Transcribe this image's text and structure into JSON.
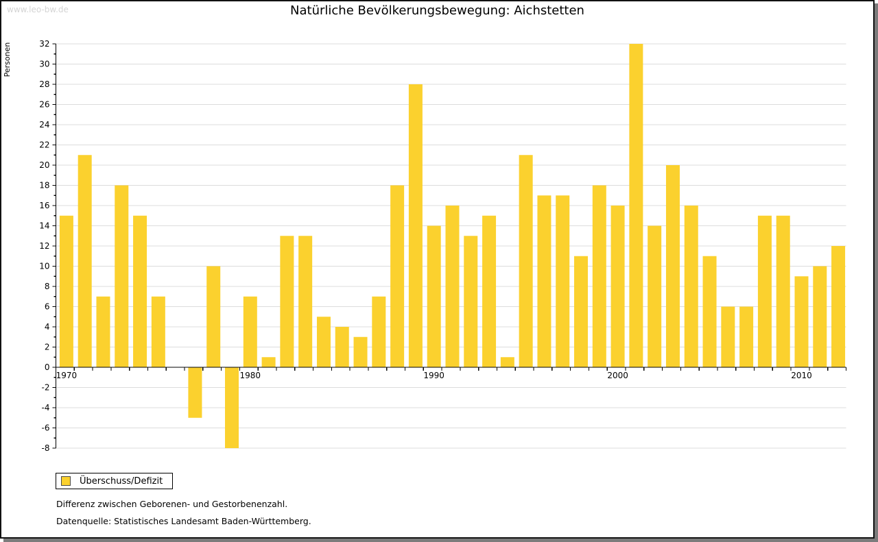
{
  "watermark": {
    "text": "www.leo-bw.de",
    "color": "#d4d4d4"
  },
  "chart_data": {
    "type": "bar",
    "title": "Natürliche Bevölkerungsbewegung: Aichstetten",
    "ylabel": "Personen",
    "xlabel": "",
    "categories": [
      1970,
      1971,
      1972,
      1973,
      1974,
      1975,
      1976,
      1977,
      1978,
      1979,
      1980,
      1981,
      1982,
      1983,
      1984,
      1985,
      1986,
      1987,
      1988,
      1989,
      1990,
      1991,
      1992,
      1993,
      1994,
      1995,
      1996,
      1997,
      1998,
      1999,
      2000,
      2001,
      2002,
      2003,
      2004,
      2005,
      2006,
      2007,
      2008,
      2009,
      2010,
      2011,
      2012
    ],
    "values": [
      15,
      21,
      7,
      18,
      15,
      7,
      0,
      -5,
      10,
      -8,
      7,
      1,
      13,
      13,
      5,
      4,
      3,
      7,
      18,
      28,
      14,
      16,
      13,
      15,
      1,
      21,
      17,
      17,
      11,
      18,
      16,
      32,
      14,
      20,
      16,
      11,
      6,
      6,
      15,
      15,
      9,
      10,
      12
    ],
    "series_name": "Überschuss/Defizit",
    "ylim": [
      -8,
      32
    ],
    "y_tick_step": 2,
    "y_minor_step": 1,
    "x_tick_labels": [
      "1970",
      "1980",
      "1990",
      "2000",
      "2010"
    ],
    "x_tick_years": [
      1970,
      1980,
      1990,
      2000,
      2010
    ],
    "grid": true,
    "legend_position": "bottom-left",
    "bar_color": "#fbd12e",
    "grid_color": "#dcdcdc",
    "axis_color": "#000000"
  },
  "legend": {
    "label": "Überschuss/Defizit",
    "swatch_color": "#fbd12e",
    "swatch_border": "#4a4a4a"
  },
  "footer": {
    "line1": "Differenz zwischen Geborenen- und Gestorbenenzahl.",
    "line2": "Datenquelle: Statistisches Landesamt Baden-Württemberg."
  }
}
